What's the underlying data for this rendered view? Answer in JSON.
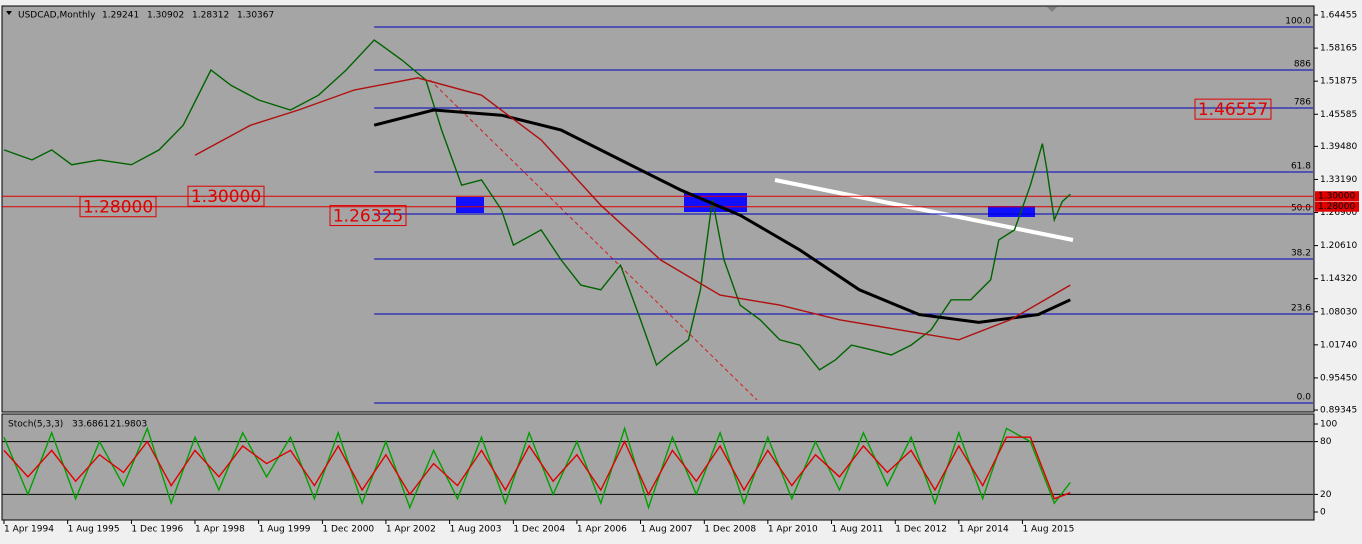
{
  "chart_data": [
    {
      "type": "line",
      "title": "USDCAD,Monthly",
      "last_bar": {
        "open": 1.29241,
        "high": 1.30902,
        "low": 1.28312
      },
      "xlim": [
        "1994-04-01",
        "2021-09-01"
      ],
      "xticks": [
        {
          "value": "1994-04-01",
          "label": "1 Apr 1994"
        },
        {
          "value": "1995-08-01",
          "label": "1 Aug 1995"
        },
        {
          "value": "1996-12-01",
          "label": "1 Dec 1996"
        },
        {
          "value": "1998-04-01",
          "label": "1 Apr 1998"
        },
        {
          "value": "1999-08-01",
          "label": "1 Aug 1999"
        },
        {
          "value": "2000-12-01",
          "label": "1 Dec 2000"
        },
        {
          "value": "2002-04-01",
          "label": "1 Apr 2002"
        },
        {
          "value": "2003-08-01",
          "label": "1 Aug 2003"
        },
        {
          "value": "2004-12-01",
          "label": "1 Dec 2004"
        },
        {
          "value": "2006-04-01",
          "label": "1 Apr 2006"
        },
        {
          "value": "2007-08-01",
          "label": "1 Aug 2007"
        },
        {
          "value": "2008-12-01",
          "label": "1 Dec 2008"
        },
        {
          "value": "2010-04-01",
          "label": "1 Apr 2010"
        },
        {
          "value": "2011-08-01",
          "label": "1 Aug 2011"
        },
        {
          "value": "2012-12-01",
          "label": "1 Dec 2012"
        },
        {
          "value": "2014-04-01",
          "label": "1 Apr 2014"
        },
        {
          "value": "2015-08-01",
          "label": "1 Aug 2015"
        }
      ],
      "ylim": [
        0.8897,
        1.6579
      ],
      "yticks": [
        1.64455,
        1.58165,
        1.51875,
        1.45585,
        {
          "value": 1.3948,
          "label": "1.39480"
        },
        {
          "value": 1.3319,
          "label": "1.33190"
        },
        {
          "value": 1.269,
          "label": "1.26900"
        },
        {
          "value": 1.2061,
          "label": "1.20610"
        },
        {
          "value": 1.1432,
          "label": "1.14320"
        },
        {
          "value": 1.0803,
          "label": "1.08030"
        },
        {
          "value": 1.0174,
          "label": "1.01740"
        },
        {
          "value": 0.9545,
          "label": "0.95450"
        },
        0.89345
      ],
      "series": [
        {
          "color": "#006400",
          "x": [
            "1994-04-01",
            "1994-11-01",
            "1995-04-01",
            "1995-09-01",
            "1996-04-01",
            "1996-12-01",
            "1997-07-01",
            "1998-01-01",
            "1998-08-01",
            "1999-01-01",
            "1999-08-01",
            "2000-04-01",
            "2000-11-01",
            "2001-06-01",
            "2002-01-01",
            "2002-08-01",
            "2003-02-01",
            "2003-06-01",
            "2003-11-01",
            "2004-04-01",
            "2004-09-01",
            "2004-12-01",
            "2005-07-01",
            "2005-12-01",
            "2006-05-01",
            "2006-10-01",
            "2007-03-01",
            "2007-08-01",
            "2007-12-01",
            "2008-03-01",
            "2008-08-01",
            "2008-11-01",
            "2009-02-01",
            "2009-05-01",
            "2009-09-01",
            "2010-02-01",
            "2010-07-01",
            "2010-12-01",
            "2011-05-01",
            "2011-09-01",
            "2012-01-01",
            "2012-06-01",
            "2012-11-01",
            "2013-04-01",
            "2013-09-01",
            "2014-02-01",
            "2014-07-01",
            "2014-12-01",
            "2015-02-01",
            "2015-06-01",
            "2015-10-01",
            "2016-01-01",
            "2016-02-01",
            "2016-04-01",
            "2016-06-01",
            "2016-08-01"
          ],
          "values": [
            1.388,
            1.369,
            1.388,
            1.36,
            1.369,
            1.36,
            1.388,
            1.435,
            1.54,
            1.511,
            1.483,
            1.464,
            1.492,
            1.54,
            1.597,
            1.559,
            1.521,
            1.426,
            1.321,
            1.331,
            1.274,
            1.207,
            1.236,
            1.179,
            1.131,
            1.122,
            1.169,
            1.065,
            0.979,
            0.998,
            1.027,
            1.122,
            1.293,
            1.179,
            1.093,
            1.065,
            1.027,
            1.017,
            0.97,
            0.989,
            1.017,
            1.008,
            0.998,
            1.017,
            1.046,
            1.103,
            1.103,
            1.141,
            1.217,
            1.236,
            1.321,
            1.4,
            1.355,
            1.255,
            1.29,
            1.30367
          ]
        },
        {
          "color": "#000000",
          "x": [
            "2002-01-01",
            "2003-04-01",
            "2004-09-01",
            "2005-12-01",
            "2007-03-01",
            "2008-06-01",
            "2009-09-01",
            "2010-12-01",
            "2012-03-01",
            "2013-06-01",
            "2014-09-01",
            "2015-12-01",
            "2016-08-01"
          ],
          "values": [
            1.435,
            1.464,
            1.454,
            1.426,
            1.369,
            1.312,
            1.264,
            1.198,
            1.122,
            1.075,
            1.06,
            1.075,
            1.103
          ]
        },
        {
          "color": "#b01010",
          "x": [
            "1998-04-01",
            "1999-06-01",
            "2000-06-01",
            "2001-08-01",
            "2002-12-01",
            "2004-04-01",
            "2005-07-01",
            "2006-10-01",
            "2008-01-01",
            "2009-04-01",
            "2010-07-01",
            "2011-10-01",
            "2013-01-01",
            "2014-04-01",
            "2015-05-01",
            "2016-08-01"
          ],
          "values": [
            1.378,
            1.435,
            1.464,
            1.502,
            1.525,
            1.492,
            1.407,
            1.283,
            1.179,
            1.112,
            1.093,
            1.065,
            1.046,
            1.027,
            1.065,
            1.131
          ]
        }
      ],
      "fibonacci": {
        "start": "2002-01-01",
        "levels": [
          {
            "value": 1.6217,
            "label": "100.0"
          },
          {
            "value": 1.54,
            "label": "886"
          },
          {
            "value": 1.4677,
            "label": "786"
          },
          {
            "value": 1.3461,
            "label": "61.8"
          },
          {
            "value": 1.2662,
            "label": "50.0"
          },
          {
            "value": 1.1807,
            "label": "38.2"
          },
          {
            "value": 1.0761,
            "label": "23.6"
          },
          {
            "value": 0.9069,
            "label": "0.0"
          }
        ]
      },
      "levels": [
        {
          "value": 1.3,
          "label": "1.30000"
        },
        {
          "value": 1.28,
          "label": "1.28000"
        }
      ],
      "annotations": [
        {
          "value": 1.26325,
          "label": "1.26325"
        },
        {
          "value": 1.46557,
          "label": "1.46557"
        }
      ]
    },
    {
      "type": "line",
      "title": "Stoch(5,3,3)",
      "ylim": [
        -9.1,
        109.1
      ],
      "yticks": [
        0,
        20,
        80,
        100
      ],
      "levels": [
        20,
        80
      ],
      "series": [
        {
          "color": "#00a000",
          "x": [
            "1994-04-01",
            "1994-10-01",
            "1995-04-01",
            "1995-10-01",
            "1996-04-01",
            "1996-10-01",
            "1997-04-01",
            "1997-10-01",
            "1998-04-01",
            "1998-10-01",
            "1999-04-01",
            "1999-10-01",
            "2000-04-01",
            "2000-10-01",
            "2001-04-01",
            "2001-10-01",
            "2002-04-01",
            "2002-10-01",
            "2003-04-01",
            "2003-10-01",
            "2004-04-01",
            "2004-10-01",
            "2005-04-01",
            "2005-10-01",
            "2006-04-01",
            "2006-10-01",
            "2007-04-01",
            "2007-10-01",
            "2008-04-01",
            "2008-10-01",
            "2009-04-01",
            "2009-10-01",
            "2010-04-01",
            "2010-10-01",
            "2011-04-01",
            "2011-10-01",
            "2012-04-01",
            "2012-10-01",
            "2013-04-01",
            "2013-10-01",
            "2014-04-01",
            "2014-10-01",
            "2015-04-01",
            "2015-10-01",
            "2016-04-01",
            "2016-08-01"
          ],
          "values": [
            85,
            20,
            90,
            15,
            80,
            30,
            95,
            10,
            85,
            25,
            90,
            40,
            85,
            15,
            90,
            10,
            80,
            5,
            70,
            15,
            85,
            10,
            90,
            20,
            80,
            10,
            95,
            5,
            85,
            20,
            90,
            10,
            85,
            15,
            80,
            25,
            90,
            30,
            85,
            10,
            90,
            15,
            95,
            80,
            10,
            33.6861
          ]
        },
        {
          "color": "#e00000",
          "x": [
            "1994-04-01",
            "1994-10-01",
            "1995-04-01",
            "1995-10-01",
            "1996-04-01",
            "1996-10-01",
            "1997-04-01",
            "1997-10-01",
            "1998-04-01",
            "1998-10-01",
            "1999-04-01",
            "1999-10-01",
            "2000-04-01",
            "2000-10-01",
            "2001-04-01",
            "2001-10-01",
            "2002-04-01",
            "2002-10-01",
            "2003-04-01",
            "2003-10-01",
            "2004-04-01",
            "2004-10-01",
            "2005-04-01",
            "2005-10-01",
            "2006-04-01",
            "2006-10-01",
            "2007-04-01",
            "2007-10-01",
            "2008-04-01",
            "2008-10-01",
            "2009-04-01",
            "2009-10-01",
            "2010-04-01",
            "2010-10-01",
            "2011-04-01",
            "2011-10-01",
            "2012-04-01",
            "2012-10-01",
            "2013-04-01",
            "2013-10-01",
            "2014-04-01",
            "2014-10-01",
            "2015-04-01",
            "2015-10-01",
            "2016-04-01",
            "2016-08-01"
          ],
          "values": [
            70,
            40,
            70,
            35,
            65,
            45,
            80,
            30,
            70,
            40,
            75,
            55,
            70,
            30,
            75,
            25,
            65,
            20,
            55,
            30,
            70,
            25,
            75,
            35,
            65,
            25,
            80,
            20,
            70,
            35,
            75,
            25,
            70,
            30,
            65,
            40,
            75,
            45,
            70,
            25,
            75,
            30,
            85,
            85,
            15,
            21.9803
          ]
        }
      ]
    }
  ]
}
